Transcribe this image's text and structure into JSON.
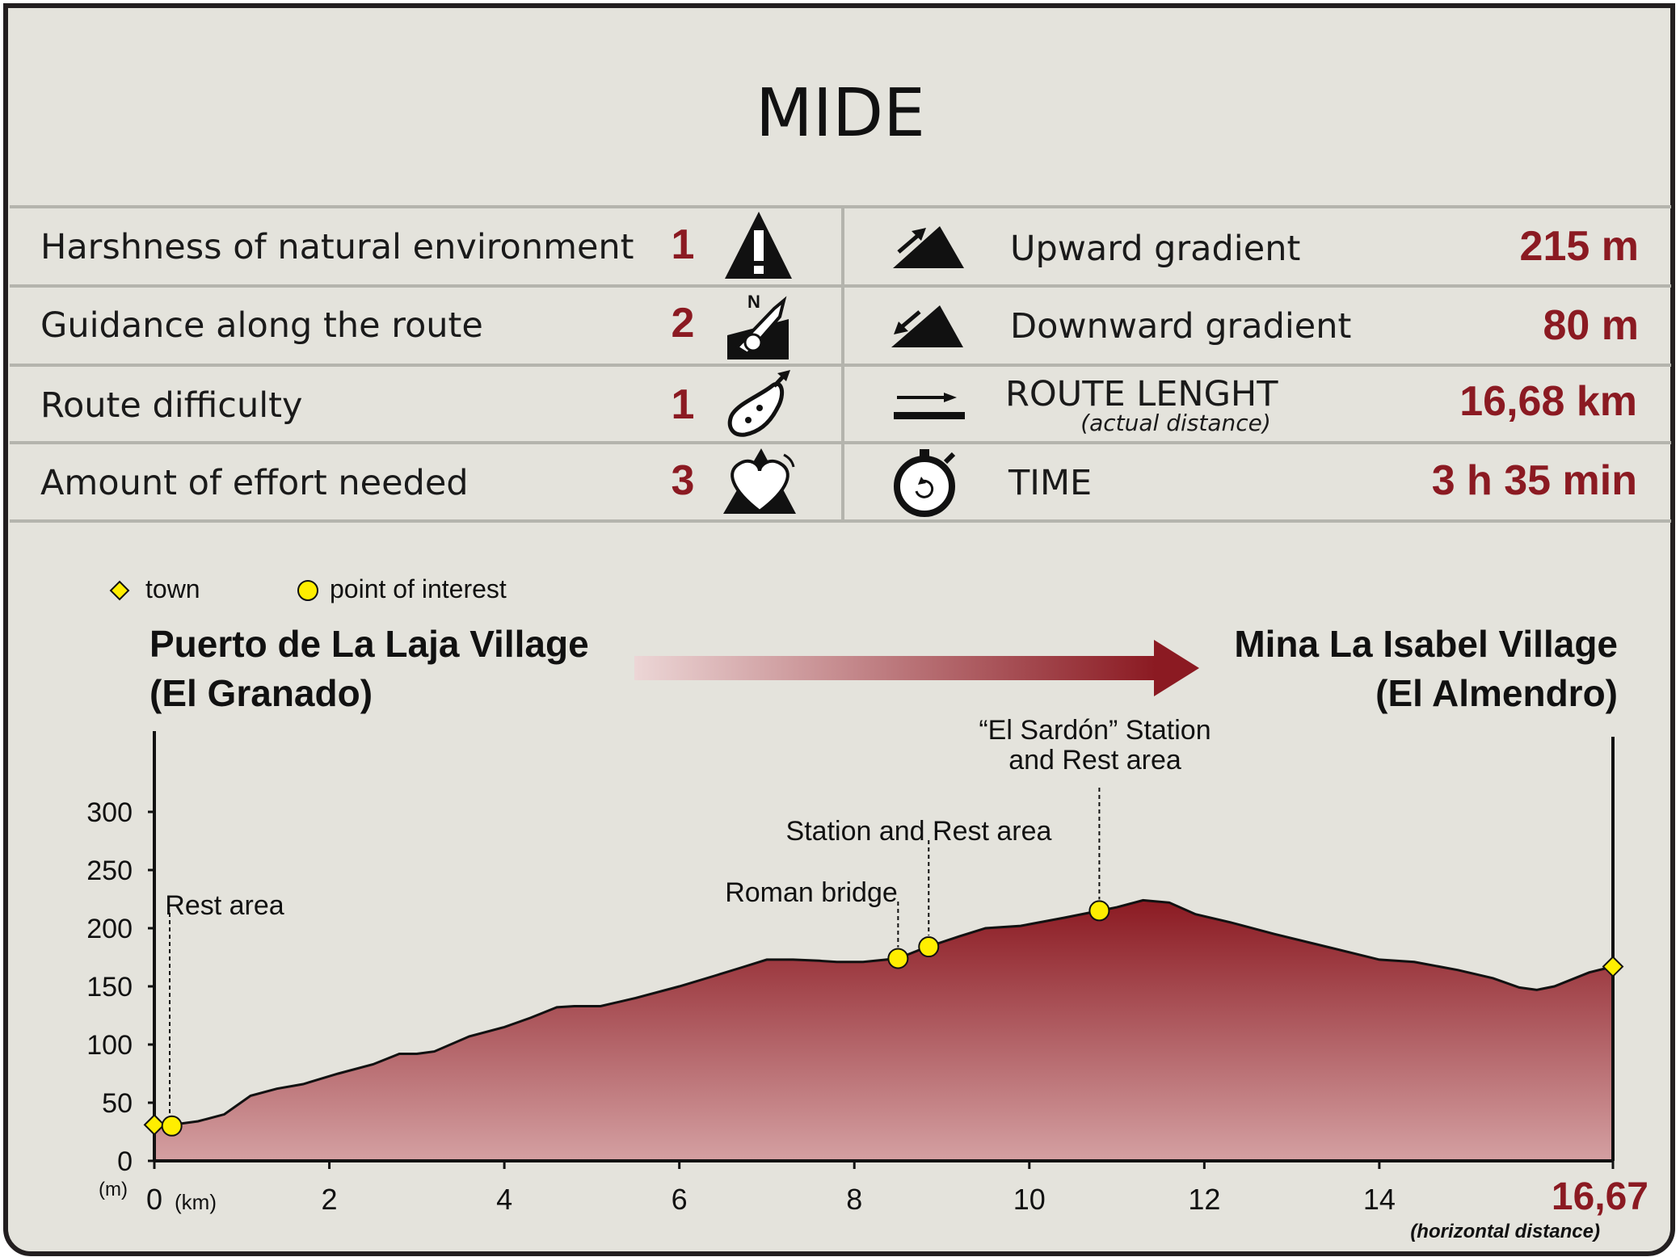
{
  "title": "MIDE",
  "mide_left": [
    {
      "label": "Harshness of natural environment",
      "value": "1",
      "icon": "warning-triangle-icon"
    },
    {
      "label": "Guidance along the route",
      "value": "2",
      "icon": "compass-sign-icon"
    },
    {
      "label": "Route difficulty",
      "value": "1",
      "icon": "footprint-icon"
    },
    {
      "label": "Amount of effort needed",
      "value": "3",
      "icon": "heart-mountain-icon"
    }
  ],
  "mide_right": [
    {
      "label": "Upward gradient",
      "sublabel": "",
      "value": "215 m",
      "icon": "upward-slope-icon"
    },
    {
      "label": "Downward gradient",
      "sublabel": "",
      "value": "80 m",
      "icon": "downward-slope-icon"
    },
    {
      "label": "ROUTE LENGHT",
      "sublabel": "(actual distance)",
      "value": "16,68 km",
      "icon": "distance-arrow-icon"
    },
    {
      "label": "TIME",
      "sublabel": "",
      "value": "3 h 35 min",
      "icon": "stopwatch-icon"
    }
  ],
  "legend": {
    "town": "town",
    "poi": "point of interest"
  },
  "route": {
    "start_line1": "Puerto de La Laja Village",
    "start_line2": "(El Granado)",
    "end_line1": "Mina La Isabel Village",
    "end_line2": "(El Almendro)"
  },
  "colors": {
    "accent": "#8b1a22",
    "background": "#e4e3dc",
    "marker": "#ffee00",
    "fill_bottom": "#d4a0a2"
  },
  "chart_data": {
    "type": "area",
    "xlabel_unit": "(km)",
    "ylabel_unit": "(m)",
    "xlim": [
      0,
      16.67
    ],
    "ylim": [
      0,
      300
    ],
    "x_ticks": [
      "0",
      "2",
      "4",
      "6",
      "8",
      "10",
      "12",
      "14"
    ],
    "x_end_label": "16,67",
    "x_end_note": "(horizontal distance)",
    "y_ticks": [
      "0",
      "50",
      "100",
      "150",
      "200",
      "250",
      "300"
    ],
    "profile": [
      [
        0,
        31
      ],
      [
        0.2,
        31
      ],
      [
        0.5,
        34
      ],
      [
        0.8,
        40
      ],
      [
        1.1,
        56
      ],
      [
        1.4,
        62
      ],
      [
        1.7,
        66
      ],
      [
        2.1,
        75
      ],
      [
        2.5,
        83
      ],
      [
        2.8,
        92
      ],
      [
        3.0,
        92
      ],
      [
        3.2,
        94
      ],
      [
        3.6,
        107
      ],
      [
        4.0,
        115
      ],
      [
        4.3,
        123
      ],
      [
        4.6,
        132
      ],
      [
        4.8,
        133
      ],
      [
        5.1,
        133
      ],
      [
        5.5,
        140
      ],
      [
        6.0,
        150
      ],
      [
        6.4,
        159
      ],
      [
        6.7,
        166
      ],
      [
        7.0,
        173
      ],
      [
        7.3,
        173
      ],
      [
        7.6,
        172
      ],
      [
        7.8,
        171
      ],
      [
        8.1,
        171
      ],
      [
        8.5,
        174
      ],
      [
        8.8,
        183
      ],
      [
        9.2,
        193
      ],
      [
        9.5,
        200
      ],
      [
        9.9,
        202
      ],
      [
        10.4,
        209
      ],
      [
        10.8,
        215
      ],
      [
        11.0,
        218
      ],
      [
        11.2,
        222
      ],
      [
        11.3,
        224
      ],
      [
        11.6,
        222
      ],
      [
        11.9,
        212
      ],
      [
        12.3,
        205
      ],
      [
        12.8,
        195
      ],
      [
        13.4,
        184
      ],
      [
        14.0,
        173
      ],
      [
        14.4,
        171
      ],
      [
        14.9,
        164
      ],
      [
        15.3,
        157
      ],
      [
        15.6,
        149
      ],
      [
        15.8,
        147
      ],
      [
        16.0,
        150
      ],
      [
        16.4,
        162
      ],
      [
        16.67,
        167
      ]
    ],
    "towns": [
      {
        "x": 0,
        "y": 31
      },
      {
        "x": 16.67,
        "y": 167
      }
    ],
    "points_of_interest": [
      {
        "x": 0.2,
        "y": 30,
        "label1": "Rest area",
        "label2": ""
      },
      {
        "x": 8.5,
        "y": 174,
        "label1": "Roman bridge",
        "label2": ""
      },
      {
        "x": 8.85,
        "y": 184,
        "label1": "Station and Rest area",
        "label2": ""
      },
      {
        "x": 10.8,
        "y": 215,
        "label1": "“El Sardón” Station",
        "label2": "and Rest area"
      }
    ]
  }
}
